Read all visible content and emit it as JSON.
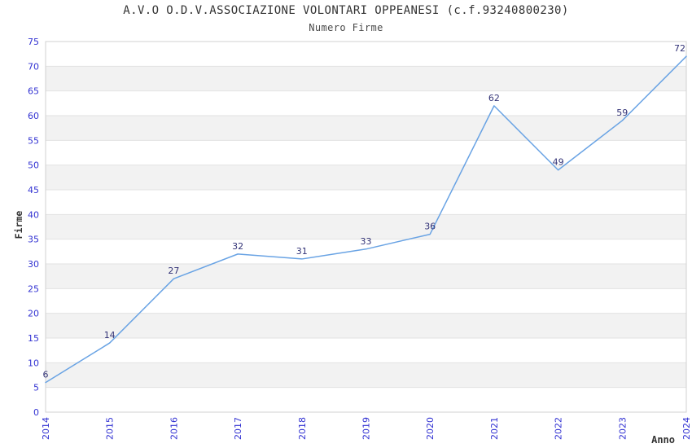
{
  "header": {
    "title": "A.V.O O.D.V.ASSOCIAZIONE VOLONTARI OPPEANESI (c.f.93240800230)",
    "subtitle": "Numero Firme"
  },
  "chart_data": {
    "type": "line",
    "title": "A.V.O O.D.V.ASSOCIAZIONE VOLONTARI OPPEANESI (c.f.93240800230)",
    "subtitle": "Numero Firme",
    "xlabel": "Anno",
    "ylabel": "Firme",
    "categories": [
      "2014",
      "2015",
      "2016",
      "2017",
      "2018",
      "2019",
      "2020",
      "2021",
      "2022",
      "2023",
      "2024"
    ],
    "values": [
      6,
      14,
      27,
      32,
      31,
      33,
      36,
      62,
      49,
      59,
      72
    ],
    "ylim": [
      0,
      75
    ],
    "ytick_step": 5,
    "grid": "horizontal alternating bands every 5 units, no vertical gridlines",
    "legend": "none",
    "data_labels": "value shown above each point",
    "colors": {
      "line": "#69a3e4",
      "band": "#f2f2f2",
      "gridline": "#e2e2e2",
      "border": "#d0d0d0",
      "tick_label": "#3232d2",
      "data_label": "#333377",
      "title_text": "#333333",
      "axis_title_text": "#333333",
      "background": "#ffffff"
    }
  }
}
